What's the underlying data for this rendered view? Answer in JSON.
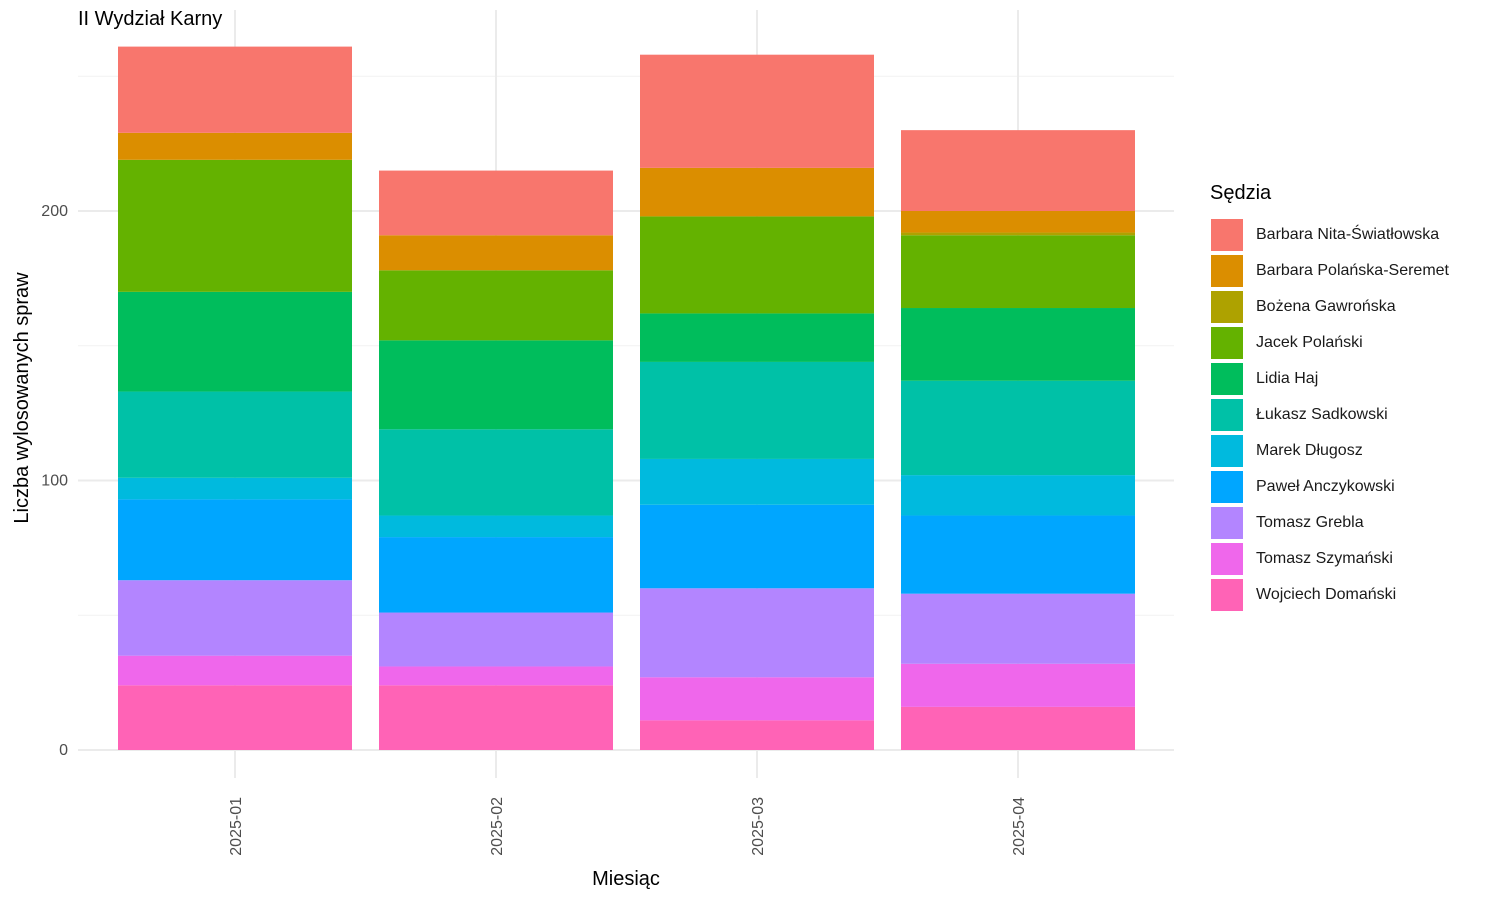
{
  "chart_data": {
    "type": "bar",
    "stacked": true,
    "title": "II Wydział Karny",
    "xlabel": "Miesiąc",
    "ylabel": "Liczba wylosowanych spraw",
    "ylim": [
      0,
      260
    ],
    "yticks": [
      0,
      100,
      200
    ],
    "grid": true,
    "legend_title": "Sędzia",
    "legend_position": "right",
    "categories": [
      "2025-01",
      "2025-02",
      "2025-03",
      "2025-04"
    ],
    "series": [
      {
        "name": "Barbara Nita-Światłowska",
        "color": "#F8766D",
        "values": [
          32,
          24,
          42,
          30
        ]
      },
      {
        "name": "Barbara Polańska-Seremet",
        "color": "#DB8E00",
        "values": [
          10,
          13,
          18,
          8
        ]
      },
      {
        "name": "Bożena Gawrońska",
        "color": "#AEA200",
        "values": [
          0,
          0,
          0,
          1
        ]
      },
      {
        "name": "Jacek Polański",
        "color": "#64B200",
        "values": [
          49,
          26,
          36,
          27
        ]
      },
      {
        "name": "Lidia Haj",
        "color": "#00BD5C",
        "values": [
          37,
          33,
          18,
          27
        ]
      },
      {
        "name": "Łukasz Sadkowski",
        "color": "#00C1A7",
        "values": [
          32,
          32,
          36,
          35
        ]
      },
      {
        "name": "Marek Długosz",
        "color": "#00BADE",
        "values": [
          8,
          8,
          17,
          15
        ]
      },
      {
        "name": "Paweł Anczykowski",
        "color": "#00A6FF",
        "values": [
          30,
          28,
          31,
          29
        ]
      },
      {
        "name": "Tomasz Grebla",
        "color": "#B385FF",
        "values": [
          28,
          20,
          33,
          26
        ]
      },
      {
        "name": "Tomasz Szymański",
        "color": "#EF67EB",
        "values": [
          11,
          7,
          16,
          16
        ]
      },
      {
        "name": "Wojciech Domański",
        "color": "#FF63B6",
        "values": [
          24,
          24,
          11,
          16
        ]
      }
    ]
  }
}
